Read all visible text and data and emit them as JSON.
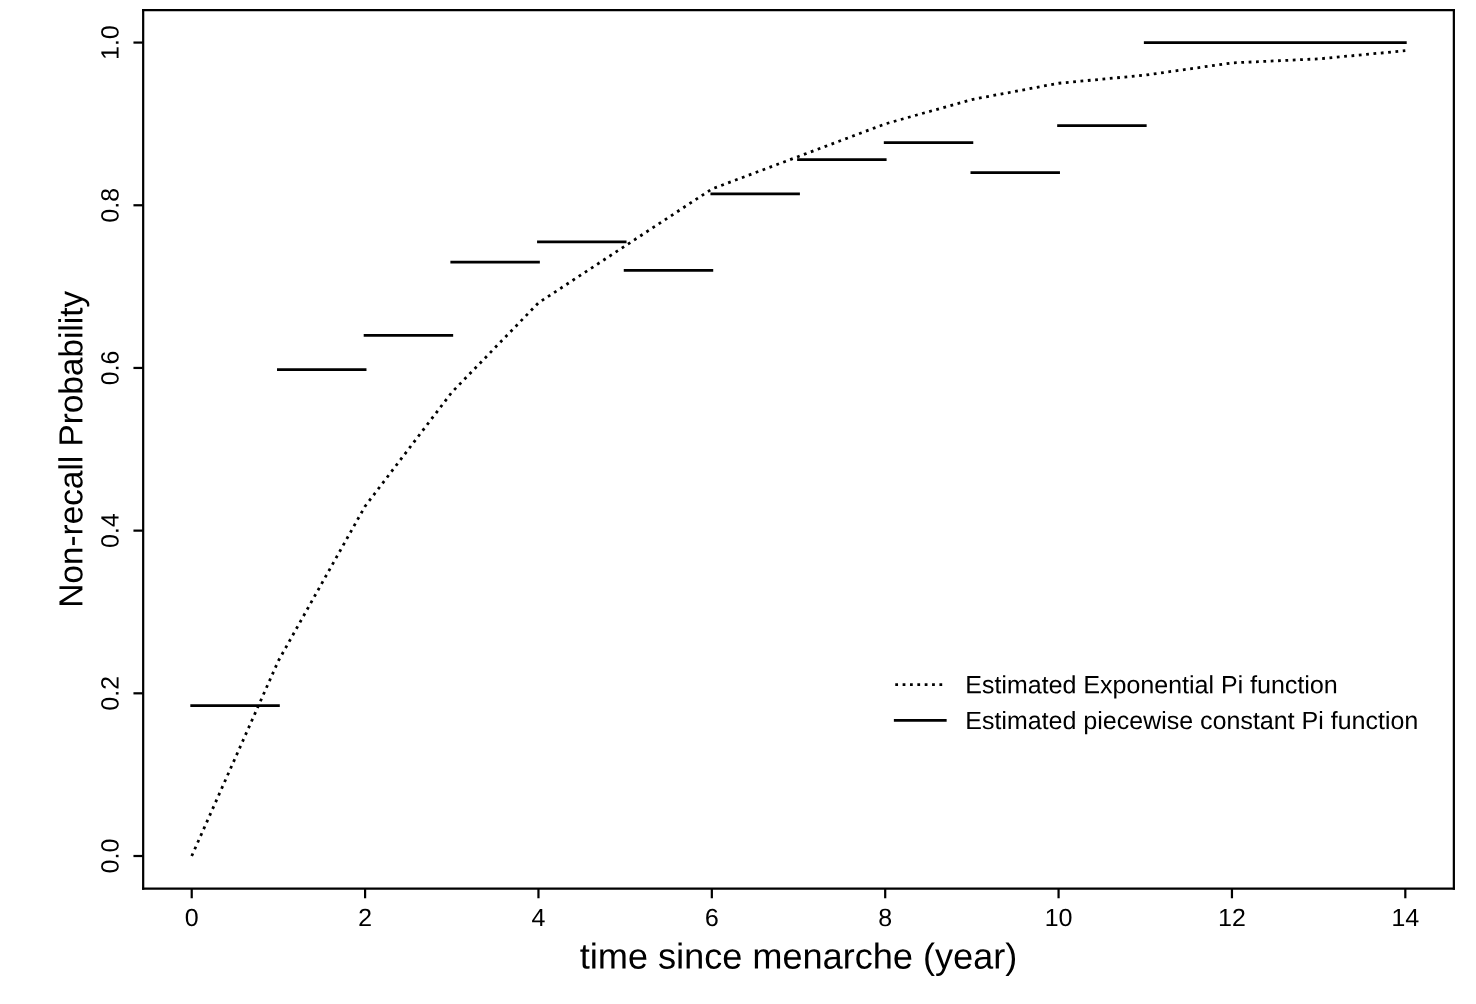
{
  "chart_data": {
    "type": "line",
    "xlabel": "time since menarche (year)",
    "ylabel": "Non-recall Probability",
    "xlim": [
      -0.56,
      14.56
    ],
    "ylim": [
      -0.04,
      1.04
    ],
    "xticks": [
      0,
      2,
      4,
      6,
      8,
      10,
      12,
      14
    ],
    "yticks": [
      {
        "value": 0,
        "label": "0.0"
      },
      {
        "value": 0.2,
        "label": "0.2"
      },
      {
        "value": 0.4,
        "label": "0.4"
      },
      {
        "value": 0.6,
        "label": "0.6"
      },
      {
        "value": 0.8,
        "label": "0.8"
      },
      {
        "value": 1.0,
        "label": "1.0"
      }
    ],
    "grid": false,
    "legend": "bottom right",
    "series": [
      {
        "name": "Estimated Exponential Pi function",
        "color": "#000000",
        "line_style": "dotted",
        "x": [
          0,
          1,
          2,
          3,
          4,
          5,
          6,
          7,
          8,
          9,
          10,
          11,
          12,
          13,
          14
        ],
        "values": [
          0,
          0.24,
          0.43,
          0.57,
          0.68,
          0.75,
          0.82,
          0.86,
          0.9,
          0.93,
          0.95,
          0.96,
          0.975,
          0.98,
          0.99
        ]
      },
      {
        "name": "Estimated piecewise constant Pi function",
        "color": "#000000",
        "line_style": "solid",
        "x": [
          0,
          1,
          null,
          1,
          2,
          null,
          2,
          3,
          null,
          3,
          4,
          null,
          4,
          5,
          null,
          5,
          6,
          null,
          6,
          7,
          null,
          7,
          8,
          null,
          8,
          9,
          null,
          9,
          10,
          null,
          10,
          11,
          null,
          11,
          14
        ],
        "values": [
          0.185,
          0.185,
          null,
          0.598,
          0.598,
          null,
          0.64,
          0.64,
          null,
          0.73,
          0.73,
          null,
          0.755,
          0.755,
          null,
          0.72,
          0.72,
          null,
          0.814,
          0.814,
          null,
          0.856,
          0.856,
          null,
          0.877,
          0.877,
          null,
          0.84,
          0.84,
          null,
          0.898,
          0.898,
          null,
          1.0,
          1.0
        ]
      }
    ]
  }
}
